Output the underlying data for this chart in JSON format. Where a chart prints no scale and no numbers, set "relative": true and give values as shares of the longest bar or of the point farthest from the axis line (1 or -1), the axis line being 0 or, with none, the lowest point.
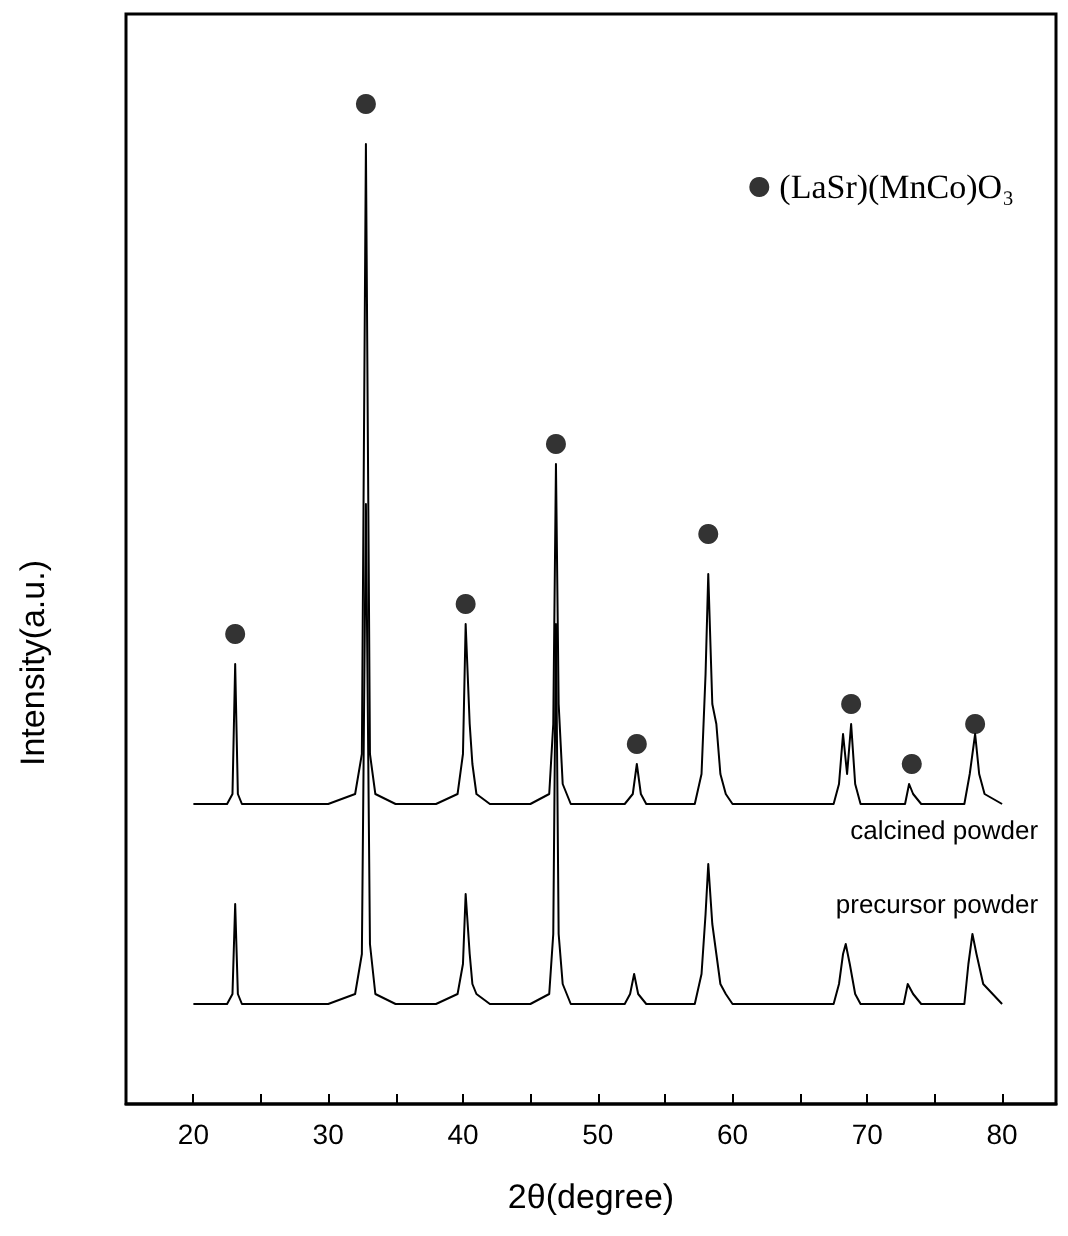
{
  "chart_data": {
    "type": "line",
    "xlabel": "2θ(degree)",
    "ylabel": "Intensity(a.u.)",
    "xlim": [
      15,
      84
    ],
    "xticks": [
      20,
      {
        "value": 25,
        "label": null
      },
      30,
      {
        "value": 35,
        "label": null
      },
      40,
      {
        "value": 45,
        "label": null
      },
      50,
      {
        "value": 55,
        "label": null
      },
      60,
      {
        "value": 65,
        "label": null
      },
      70,
      {
        "value": 75,
        "label": null
      },
      80
    ],
    "relative": true,
    "grid": false,
    "legend": "top right",
    "marker": "none",
    "line_style": "solid",
    "series": [
      {
        "name": "calcined powder",
        "color": "#000000",
        "x": [
          20,
          22.5,
          22.9,
          23.1,
          23.3,
          23.6,
          26,
          30,
          32,
          32.5,
          32.8,
          33.1,
          33.5,
          35,
          38,
          39.6,
          40,
          40.2,
          40.5,
          40.7,
          41,
          42,
          45,
          46.4,
          46.7,
          46.9,
          47.1,
          47.4,
          48,
          52,
          52.6,
          52.9,
          53.2,
          53.6,
          57.2,
          57.7,
          58,
          58.2,
          58.5,
          58.8,
          59.1,
          59.5,
          60,
          67.5,
          67.9,
          68.2,
          68.5,
          68.8,
          69.1,
          69.5,
          72.8,
          73.1,
          73.4,
          74,
          77.2,
          77.6,
          78,
          78.3,
          78.7,
          80
        ],
        "values": [
          0.3,
          0.3,
          0.31,
          0.44,
          0.31,
          0.3,
          0.3,
          0.3,
          0.31,
          0.35,
          0.96,
          0.35,
          0.31,
          0.3,
          0.3,
          0.31,
          0.35,
          0.48,
          0.38,
          0.34,
          0.31,
          0.3,
          0.3,
          0.31,
          0.38,
          0.64,
          0.4,
          0.32,
          0.3,
          0.3,
          0.31,
          0.34,
          0.31,
          0.3,
          0.3,
          0.33,
          0.43,
          0.53,
          0.4,
          0.38,
          0.33,
          0.31,
          0.3,
          0.3,
          0.32,
          0.37,
          0.33,
          0.38,
          0.32,
          0.3,
          0.3,
          0.32,
          0.31,
          0.3,
          0.3,
          0.33,
          0.37,
          0.33,
          0.31,
          0.3
        ]
      },
      {
        "name": "precursor powder",
        "color": "#000000",
        "x": [
          20,
          22.5,
          22.9,
          23.1,
          23.3,
          23.6,
          26,
          30,
          32,
          32.5,
          32.8,
          33.1,
          33.5,
          35,
          38,
          39.6,
          40,
          40.2,
          40.5,
          40.7,
          41,
          42,
          45,
          46.4,
          46.7,
          46.9,
          47.1,
          47.4,
          48,
          52,
          52.4,
          52.7,
          53.0,
          53.6,
          57.2,
          57.7,
          58,
          58.2,
          58.5,
          58.8,
          59.1,
          59.5,
          60,
          67.5,
          67.9,
          68.2,
          68.4,
          68.7,
          69.1,
          69.5,
          72.7,
          73,
          73.4,
          74,
          77.2,
          77.5,
          77.8,
          78.1,
          78.6,
          80
        ],
        "values": [
          0.1,
          0.1,
          0.11,
          0.2,
          0.11,
          0.1,
          0.1,
          0.1,
          0.11,
          0.15,
          0.6,
          0.16,
          0.11,
          0.1,
          0.1,
          0.11,
          0.14,
          0.21,
          0.15,
          0.12,
          0.11,
          0.1,
          0.1,
          0.11,
          0.17,
          0.48,
          0.17,
          0.12,
          0.1,
          0.1,
          0.11,
          0.13,
          0.11,
          0.1,
          0.1,
          0.13,
          0.19,
          0.24,
          0.18,
          0.15,
          0.12,
          0.11,
          0.1,
          0.1,
          0.12,
          0.15,
          0.16,
          0.14,
          0.11,
          0.1,
          0.1,
          0.12,
          0.11,
          0.1,
          0.1,
          0.14,
          0.17,
          0.15,
          0.12,
          0.1
        ]
      },
      {
        "name": "(LaSr)(MnCo)O₃",
        "type": "scatter",
        "marker": "circle",
        "color": "#000000",
        "x": [
          23.1,
          32.8,
          40.2,
          46.9,
          52.9,
          58.2,
          68.8,
          73.3,
          78.0
        ],
        "values": [
          0.47,
          1.0,
          0.5,
          0.66,
          0.36,
          0.57,
          0.4,
          0.34,
          0.38
        ]
      }
    ]
  }
}
